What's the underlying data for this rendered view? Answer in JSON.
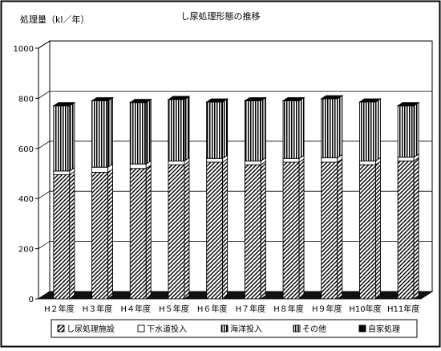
{
  "chart_data": {
    "type": "bar",
    "stacked": true,
    "style": "3d-column-monochrome",
    "title": "し尿処理形態の推移",
    "ylabel": "処理量（kl／年）",
    "xlabel": "",
    "ylim": [
      0,
      1000
    ],
    "yticks": [
      "0",
      "200",
      "400",
      "600",
      "800",
      "1000"
    ],
    "grid": true,
    "legend_position": "bottom",
    "categories": [
      "H２年度",
      "H３年度",
      "H４年度",
      "H５年度",
      "H６年度",
      "H７年度",
      "H８年度",
      "H９年度",
      "H10年度",
      "H11年度"
    ],
    "series": [
      {
        "name": "し尿処理施設",
        "pattern": "diagonal-hatch",
        "values": [
          495,
          505,
          520,
          535,
          545,
          535,
          545,
          545,
          535,
          550
        ]
      },
      {
        "name": "下水道投入",
        "pattern": "white",
        "values": [
          15,
          20,
          18,
          15,
          15,
          15,
          15,
          18,
          15,
          15
        ]
      },
      {
        "name": "海洋投入",
        "pattern": "vertical-lines",
        "values": [
          260,
          265,
          245,
          245,
          225,
          240,
          230,
          235,
          235,
          205
        ]
      },
      {
        "name": "その他",
        "pattern": "vertical-lines-fine",
        "values": [
          0,
          0,
          0,
          0,
          0,
          0,
          0,
          0,
          0,
          0
        ]
      },
      {
        "name": "自家処理",
        "pattern": "black",
        "values": [
          0,
          0,
          0,
          0,
          0,
          0,
          0,
          0,
          0,
          0
        ]
      }
    ]
  }
}
